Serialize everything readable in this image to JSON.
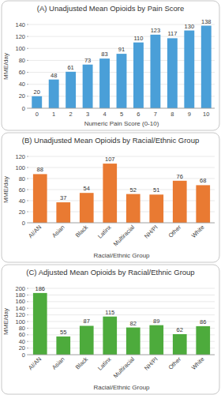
{
  "chart_data": [
    {
      "type": "bar",
      "title": "(A) Unadjusted Mean Opioids by Pain Score",
      "x_label": "Numeric Pain Score (0-10)",
      "y_label": "MME/day",
      "categories": [
        "0",
        "1",
        "2",
        "3",
        "4",
        "5",
        "6",
        "7",
        "8",
        "9",
        "10"
      ],
      "values": [
        20,
        48,
        61,
        73,
        83,
        91,
        110,
        123,
        117,
        130,
        138
      ],
      "color": "#4a9fd8",
      "ylim": [
        0,
        140
      ],
      "yticks": [
        0,
        20,
        40,
        60,
        80,
        100,
        120,
        140
      ],
      "grid": true,
      "data_labels": true
    },
    {
      "type": "bar",
      "title": "(B) Unadjusted Mean Opioids by Racial/Ethnic Group",
      "x_label": "Racial/Ethnic Group",
      "y_label": "MME/day",
      "categories": [
        "AI/AN",
        "Asian",
        "Black",
        "Latinx",
        "Multiracial",
        "NH/PI",
        "Other",
        "White"
      ],
      "values": [
        88,
        37,
        54,
        107,
        52,
        51,
        76,
        68
      ],
      "color": "#e97a32",
      "ylim": [
        0,
        120
      ],
      "yticks": [
        0,
        20,
        40,
        60,
        80,
        100,
        120
      ],
      "grid": true,
      "data_labels": true
    },
    {
      "type": "bar",
      "title": "(C) Adjusted Mean Opioids by Racial/Ethnic Group",
      "x_label": "Racial/Ethnic Group",
      "y_label": "MME/day",
      "categories": [
        "AI/AN",
        "Asian",
        "Black",
        "Latinx",
        "Multiracial",
        "NH/PI",
        "Other",
        "White"
      ],
      "values": [
        186,
        55,
        87,
        115,
        82,
        89,
        62,
        86
      ],
      "color": "#4dab3c",
      "ylim": [
        0,
        200
      ],
      "yticks": [
        0,
        20,
        40,
        60,
        80,
        100,
        120,
        140,
        160,
        180,
        200
      ],
      "grid": true,
      "data_labels": true
    }
  ]
}
